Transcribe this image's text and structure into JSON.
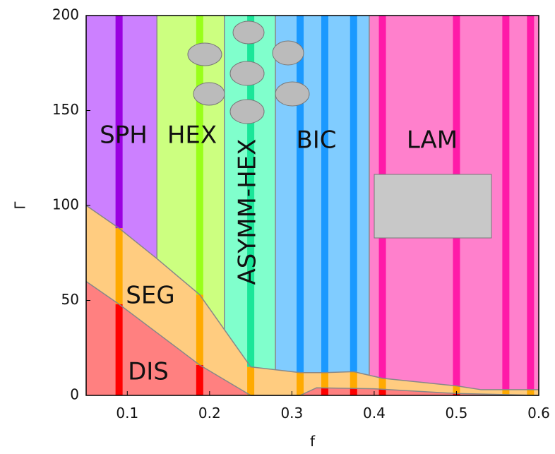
{
  "chart_data": {
    "type": "phase",
    "xlabel": "f",
    "ylabel": "Γ",
    "xlim": [
      0.05,
      0.6
    ],
    "ylim": [
      0,
      200
    ],
    "xticks": [
      0.1,
      0.2,
      0.3,
      0.4,
      0.5,
      0.6
    ],
    "yticks": [
      0,
      50,
      100,
      150,
      200
    ],
    "phases": [
      {
        "name": "SPH",
        "color": "#cc80ff",
        "stripe_color": "#9a00e0",
        "range": [
          0.05,
          0.136
        ]
      },
      {
        "name": "HEX",
        "color": "#ccff80",
        "stripe_color": "#99ff1a",
        "range": [
          0.136,
          0.218
        ]
      },
      {
        "name": "ASYMM-HEX",
        "color": "#80ffcc",
        "stripe_color": "#1ae699",
        "range": [
          0.218,
          0.28
        ]
      },
      {
        "name": "BIC",
        "color": "#80ccff",
        "stripe_color": "#1a99ff",
        "range": [
          0.28,
          0.394
        ]
      },
      {
        "name": "LAM",
        "color": "#ff80cc",
        "stripe_color": "#ff1aa8",
        "range": [
          0.394,
          0.6
        ]
      }
    ],
    "seg": {
      "name": "SEG",
      "color": "#ffcc80",
      "stripe_color": "#ffaa00",
      "x": [
        0.05,
        0.09,
        0.136,
        0.188,
        0.25,
        0.31,
        0.34,
        0.375,
        0.41,
        0.5,
        0.53,
        0.6
      ],
      "y": [
        100,
        88,
        72,
        53,
        15,
        12,
        12,
        12.5,
        9,
        5,
        3,
        3
      ]
    },
    "dis": {
      "name": "DIS",
      "color": "#ff8080",
      "stripe_color": "#ff0000",
      "x": [
        0.05,
        0.09,
        0.188,
        0.25,
        0.31,
        0.33,
        0.4,
        0.5,
        0.6
      ],
      "y": [
        60,
        48,
        16,
        0,
        0,
        4,
        3.5,
        1,
        0
      ]
    },
    "simulations": [
      0.09,
      0.188,
      0.25,
      0.31,
      0.34,
      0.375,
      0.41,
      0.5,
      0.56,
      0.59
    ]
  }
}
